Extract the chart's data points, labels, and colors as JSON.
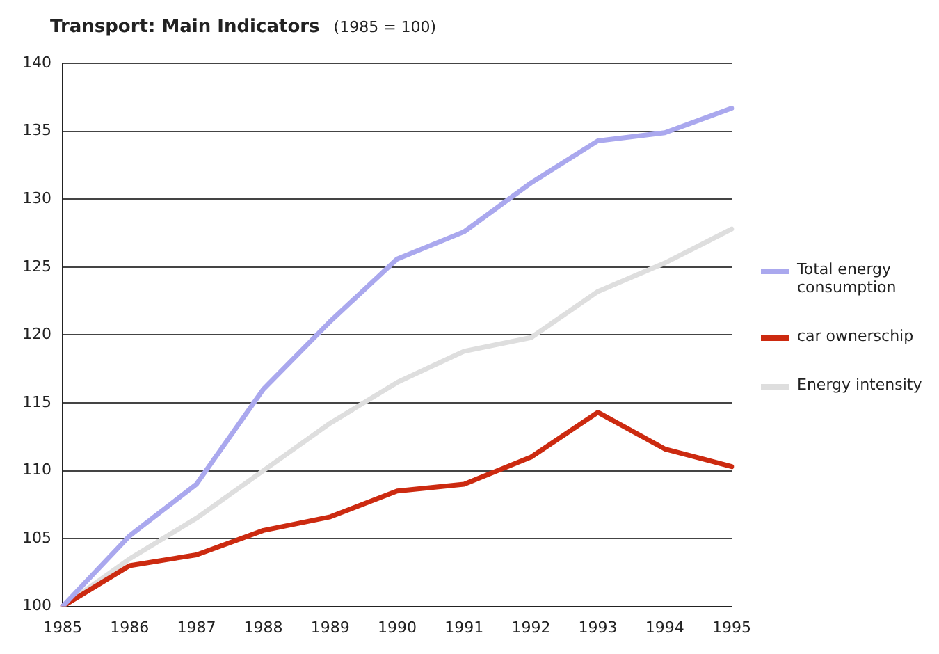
{
  "chart_data": {
    "type": "line",
    "title": "Transport: Main Indicators",
    "subtitle": "(1985 = 100)",
    "categories": [
      "1985",
      "1986",
      "1987",
      "1988",
      "1989",
      "1990",
      "1991",
      "1992",
      "1993",
      "1994",
      "1995"
    ],
    "series": [
      {
        "name": "Total energy consumption",
        "color": "#aaa8ee",
        "values": [
          100,
          105.2,
          109,
          116,
          121,
          125.6,
          127.6,
          131.2,
          134.3,
          134.9,
          136.7
        ]
      },
      {
        "name": "car ownerschip",
        "color": "#cc2a10",
        "values": [
          100,
          103,
          103.8,
          105.6,
          106.6,
          108.5,
          109,
          111,
          114.3,
          111.6,
          110.3
        ]
      },
      {
        "name": "Energy intensity",
        "color": "#dedede",
        "values": [
          100,
          103.5,
          106.5,
          110,
          113.5,
          116.5,
          118.8,
          119.8,
          123.2,
          125.3,
          127.8
        ]
      }
    ],
    "ylim": [
      100,
      140
    ],
    "yticks": [
      100,
      105,
      110,
      115,
      120,
      125,
      130,
      135,
      140
    ],
    "grid": "y",
    "legend": "right",
    "marker": "none",
    "line_style": "solid"
  }
}
